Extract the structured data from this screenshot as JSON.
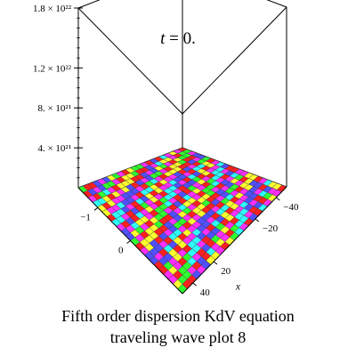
{
  "title_var": "t",
  "title_rest": " = 0.",
  "caption_line1": "Fifth order dispersion KdV  equation",
  "caption_line2": "traveling wave plot 8",
  "chart_data": {
    "type": "surface3d",
    "title": "t = 0.",
    "xlabel": "x",
    "ylabel": "",
    "zlabel": "",
    "z_ticks": [
      {
        "value": 4e+21,
        "label": "4. × 10²¹"
      },
      {
        "value": 8e+21,
        "label": "8. × 10²¹"
      },
      {
        "value": 1.2e+22,
        "label": "1.2 × 10²²"
      },
      {
        "value": 1.8e+22,
        "label": "1.8 × 10²²"
      }
    ],
    "zlim": [
      0,
      1.8e+22
    ],
    "x_ticks": [
      {
        "value": -40,
        "label": "−40"
      },
      {
        "value": -20,
        "label": "−20"
      },
      {
        "value": 20,
        "label": "20"
      },
      {
        "value": 40,
        "label": "40"
      }
    ],
    "xlim": [
      -50,
      50
    ],
    "y_ticks": [
      {
        "value": -1,
        "label": "−1"
      },
      {
        "value": 0,
        "label": "0"
      }
    ],
    "ylim": [
      -1.6,
      1.6
    ],
    "colors": [
      "#ff2020",
      "#ff30ff",
      "#ffff30",
      "#30ff30",
      "#30ffff",
      "#5050ff"
    ],
    "grid": true
  }
}
